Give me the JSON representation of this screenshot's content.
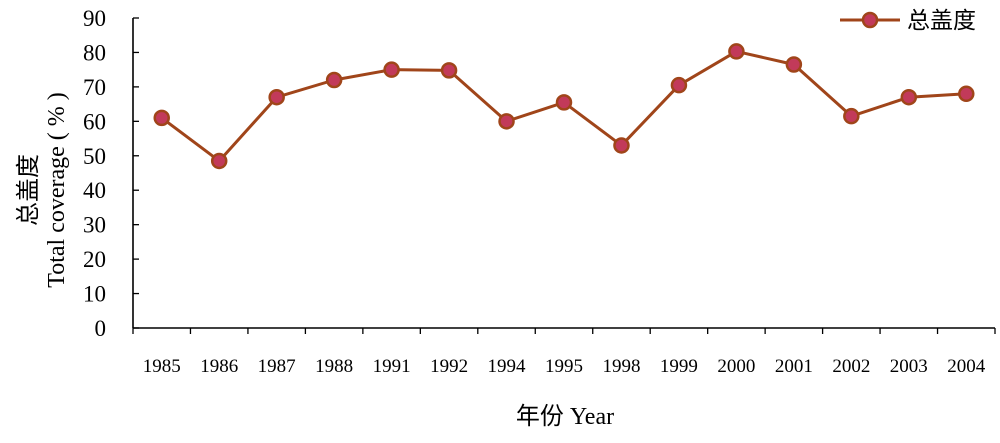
{
  "chart_data": {
    "type": "line",
    "xlabel": "年份 Year",
    "ylabel_cn": "总盖度",
    "ylabel_en": "Total coverage ( % )",
    "ylim": [
      0,
      90
    ],
    "yticks": [
      0,
      10,
      20,
      30,
      40,
      50,
      60,
      70,
      80,
      90
    ],
    "categories": [
      "1985",
      "1986",
      "1987",
      "1988",
      "1991",
      "1992",
      "1994",
      "1995",
      "1998",
      "1999",
      "2000",
      "2001",
      "2002",
      "2003",
      "2004"
    ],
    "series": [
      {
        "name": "总盖度",
        "values": [
          61,
          48.5,
          67,
          72,
          75,
          74.8,
          60,
          65.5,
          53,
          70.5,
          80.3,
          76.5,
          61.5,
          67,
          68
        ],
        "line_color": "#a0451a",
        "marker_fill": "#c23a5a",
        "marker_edge": "#a0451a"
      }
    ],
    "legend_position": "top-right",
    "grid": false
  }
}
